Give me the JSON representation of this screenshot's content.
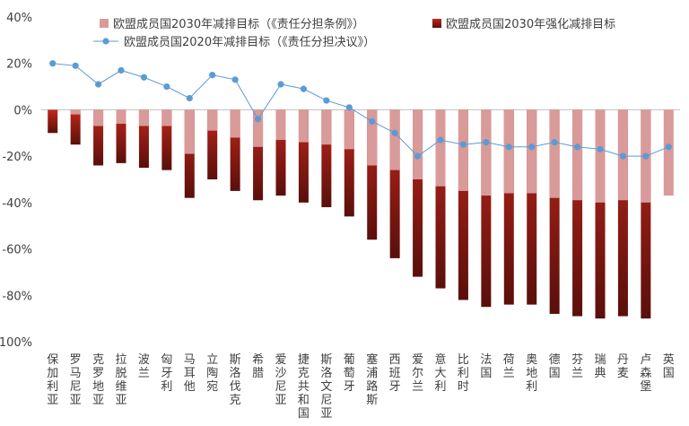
{
  "chart_data": {
    "type": "bar",
    "categories": [
      "保加利亚",
      "罗马尼亚",
      "克罗地亚",
      "拉脱维亚",
      "波兰",
      "匈牙利",
      "马耳他",
      "立陶宛",
      "斯洛伐克",
      "希腊",
      "爱沙尼亚",
      "捷克共和国",
      "斯洛文尼亚",
      "葡萄牙",
      "塞浦路斯",
      "西班牙",
      "爱尔兰",
      "意大利",
      "比利时",
      "法国",
      "荷兰",
      "奥地利",
      "德国",
      "芬兰",
      "瑞典",
      "丹麦",
      "卢森堡",
      "英国"
    ],
    "series": [
      {
        "name": "欧盟成员国2030年减排目标（《责任分担条例》）",
        "type": "bar",
        "color": "#d99a9a",
        "values": [
          0,
          -2,
          -7,
          -6,
          -7,
          -7,
          -19,
          -9,
          -12,
          -16,
          -13,
          -14,
          -15,
          -17,
          -24,
          -26,
          -30,
          -33,
          -35,
          -37,
          -36,
          -36,
          -38,
          -39,
          -40,
          -39,
          -40,
          -37
        ]
      },
      {
        "name": "欧盟成员国2030年强化减排目标",
        "type": "bar",
        "color": "#c0281c",
        "values": [
          -10,
          -15,
          -24,
          -23,
          -25,
          -26,
          -38,
          -30,
          -35,
          -39,
          -37,
          -40,
          -42,
          -46,
          -56,
          -64,
          -72,
          -77,
          -82,
          -85,
          -84,
          -84,
          -88,
          -89,
          -90,
          -89,
          -90,
          null
        ]
      },
      {
        "name": "欧盟成员国2020年减排目标（《责任分担决议》）",
        "type": "line",
        "color": "#5b9bd5",
        "values": [
          20,
          19,
          11,
          17,
          14,
          10,
          5,
          15,
          13,
          -4,
          11,
          9,
          4,
          1,
          -5,
          -10,
          -20,
          -13,
          -15,
          -14,
          -16,
          -16,
          -14,
          -16,
          -17,
          -20,
          -20,
          -16
        ]
      }
    ],
    "ylim": [
      -100,
      40
    ],
    "yticks": [
      "40%",
      "20%",
      "0%",
      "-20%",
      "-40%",
      "-60%",
      "-80%",
      "-100%"
    ],
    "legend_position": "top",
    "grid": false
  }
}
